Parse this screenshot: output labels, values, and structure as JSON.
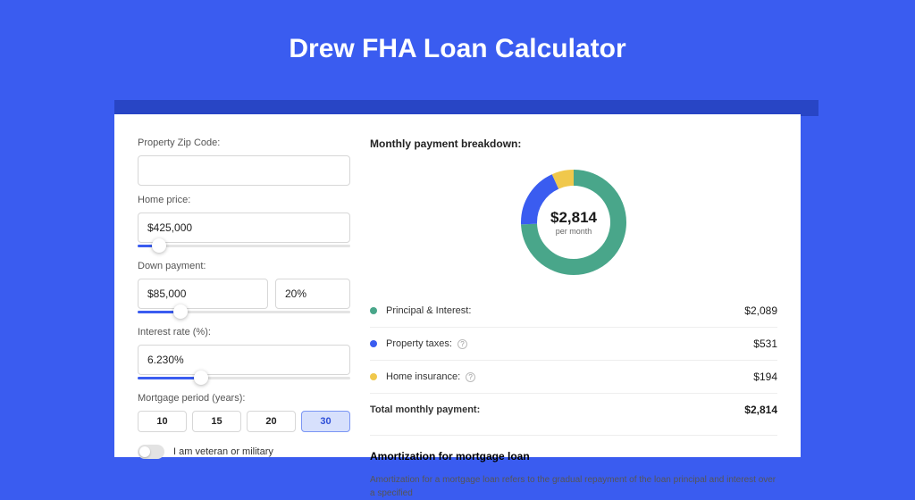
{
  "page": {
    "title": "Drew FHA Loan Calculator",
    "background_color": "#3a5cf0",
    "shadow_color": "#2845c5",
    "card_background": "#ffffff"
  },
  "form": {
    "zip": {
      "label": "Property Zip Code:",
      "value": ""
    },
    "home_price": {
      "label": "Home price:",
      "value": "$425,000",
      "slider_pct": 10
    },
    "down_payment": {
      "label": "Down payment:",
      "value": "$85,000",
      "pct_value": "20%",
      "slider_pct": 20
    },
    "interest_rate": {
      "label": "Interest rate (%):",
      "value": "6.230%",
      "slider_pct": 30
    },
    "mortgage_period": {
      "label": "Mortgage period (years):",
      "options": [
        "10",
        "15",
        "20",
        "30"
      ],
      "selected": "30"
    },
    "veteran": {
      "label": "I am veteran or military",
      "checked": false
    }
  },
  "breakdown": {
    "header": "Monthly payment breakdown:",
    "donut": {
      "center_amount": "$2,814",
      "center_sub": "per month",
      "slices": [
        {
          "key": "principal_interest",
          "value": 2089,
          "color": "#49a68a"
        },
        {
          "key": "property_taxes",
          "value": 531,
          "color": "#3a5cf0"
        },
        {
          "key": "home_insurance",
          "value": 194,
          "color": "#f0c84c"
        }
      ],
      "stroke_width": 18
    },
    "legend": [
      {
        "color": "#49a68a",
        "label": "Principal & Interest:",
        "value": "$2,089",
        "info": false
      },
      {
        "color": "#3a5cf0",
        "label": "Property taxes:",
        "value": "$531",
        "info": true
      },
      {
        "color": "#f0c84c",
        "label": "Home insurance:",
        "value": "$194",
        "info": true
      }
    ],
    "total": {
      "label": "Total monthly payment:",
      "value": "$2,814"
    }
  },
  "amortization": {
    "title": "Amortization for mortgage loan",
    "desc": "Amortization for a mortgage loan refers to the gradual repayment of the loan principal and interest over a specified"
  }
}
